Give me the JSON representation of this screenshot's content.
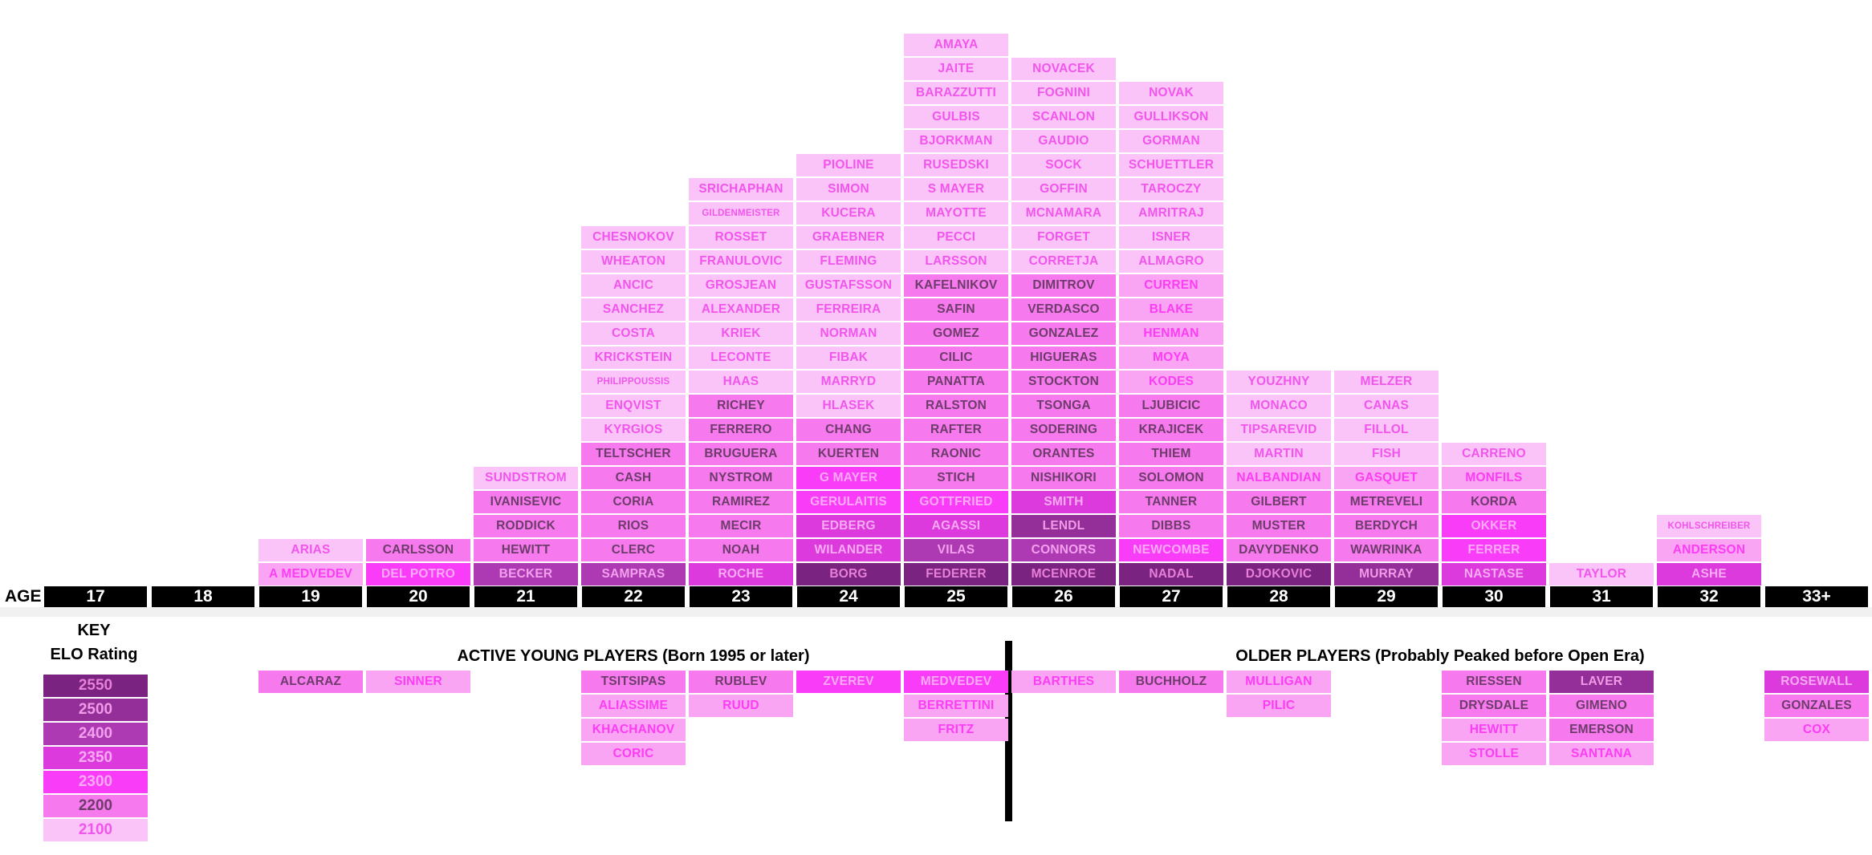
{
  "palette": {
    "2100": {
      "bg": "#FBC4F8",
      "fg": "#F156EC"
    },
    "2150": {
      "bg": "#F9A5F3",
      "fg": "#FB3DF3"
    },
    "2200": {
      "bg": "#F679EE",
      "fg": "#6E3C6B"
    },
    "2300": {
      "bg": "#F83CF8",
      "fg": "#FCA9F8"
    },
    "2350": {
      "bg": "#DD3ADD",
      "fg": "#F8AAF4"
    },
    "2400": {
      "bg": "#AD39B3",
      "fg": "#F3A0EE"
    },
    "2500": {
      "bg": "#942E98",
      "fg": "#F09AE8"
    },
    "2550": {
      "bg": "#7A2380",
      "fg": "#E87FD8"
    }
  },
  "key": {
    "title": "KEY",
    "subtitle": "ELO Rating",
    "levels": [
      "2550",
      "2500",
      "2400",
      "2350",
      "2300",
      "2200",
      "2100"
    ]
  },
  "age_axis": {
    "label": "AGE",
    "ages": [
      "17",
      "18",
      "19",
      "20",
      "21",
      "22",
      "23",
      "24",
      "25",
      "26",
      "27",
      "28",
      "29",
      "30",
      "31",
      "32",
      "33+"
    ]
  },
  "chart_data": {
    "type": "bar",
    "subtype": "stacked-player-histogram",
    "xlabel": "AGE",
    "categories": [
      "17",
      "18",
      "19",
      "20",
      "21",
      "22",
      "23",
      "24",
      "25",
      "26",
      "27",
      "28",
      "29",
      "30",
      "31",
      "32",
      "33+"
    ],
    "counts_per_age": [
      0,
      0,
      2,
      2,
      5,
      15,
      17,
      18,
      23,
      22,
      21,
      9,
      9,
      6,
      1,
      3,
      0
    ],
    "elo_levels": [
      2550,
      2500,
      2400,
      2350,
      2300,
      2200,
      2100
    ],
    "columns": {
      "17": [],
      "18": [],
      "19": [
        [
          "ARIAS",
          "2100"
        ],
        [
          "A MEDVEDEV",
          "2150"
        ]
      ],
      "20": [
        [
          "CARLSSON",
          "2200"
        ],
        [
          "DEL POTRO",
          "2300"
        ]
      ],
      "21": [
        [
          "SUNDSTROM",
          "2100"
        ],
        [
          "IVANISEVIC",
          "2200"
        ],
        [
          "RODDICK",
          "2200"
        ],
        [
          "HEWITT",
          "2200"
        ],
        [
          "BECKER",
          "2400"
        ]
      ],
      "22": [
        [
          "CHESNOKOV",
          "2100"
        ],
        [
          "WHEATON",
          "2100"
        ],
        [
          "ANCIC",
          "2100"
        ],
        [
          "SANCHEZ",
          "2100"
        ],
        [
          "COSTA",
          "2100"
        ],
        [
          "KRICKSTEIN",
          "2100"
        ],
        [
          "PHILIPPOUSSIS",
          "2100"
        ],
        [
          "ENQVIST",
          "2100"
        ],
        [
          "KYRGIOS",
          "2100"
        ],
        [
          "TELTSCHER",
          "2200"
        ],
        [
          "CASH",
          "2200"
        ],
        [
          "CORIA",
          "2200"
        ],
        [
          "RIOS",
          "2200"
        ],
        [
          "CLERC",
          "2200"
        ],
        [
          "SAMPRAS",
          "2400"
        ]
      ],
      "23": [
        [
          "SRICHAPHAN",
          "2100"
        ],
        [
          "GILDENMEISTER",
          "2100"
        ],
        [
          "ROSSET",
          "2100"
        ],
        [
          "FRANULOVIC",
          "2100"
        ],
        [
          "GROSJEAN",
          "2100"
        ],
        [
          "ALEXANDER",
          "2100"
        ],
        [
          "KRIEK",
          "2100"
        ],
        [
          "LECONTE",
          "2100"
        ],
        [
          "HAAS",
          "2100"
        ],
        [
          "RICHEY",
          "2200"
        ],
        [
          "FERRERO",
          "2200"
        ],
        [
          "BRUGUERA",
          "2200"
        ],
        [
          "NYSTROM",
          "2200"
        ],
        [
          "RAMIREZ",
          "2200"
        ],
        [
          "MECIR",
          "2200"
        ],
        [
          "NOAH",
          "2200"
        ],
        [
          "ROCHE",
          "2350"
        ]
      ],
      "24": [
        [
          "PIOLINE",
          "2100"
        ],
        [
          "SIMON",
          "2100"
        ],
        [
          "KUCERA",
          "2100"
        ],
        [
          "GRAEBNER",
          "2100"
        ],
        [
          "FLEMING",
          "2100"
        ],
        [
          "GUSTAFSSON",
          "2100"
        ],
        [
          "FERREIRA",
          "2100"
        ],
        [
          "NORMAN",
          "2100"
        ],
        [
          "FIBAK",
          "2100"
        ],
        [
          "MARRYD",
          "2100"
        ],
        [
          "HLASEK",
          "2100"
        ],
        [
          "CHANG",
          "2200"
        ],
        [
          "KUERTEN",
          "2200"
        ],
        [
          "G MAYER",
          "2300"
        ],
        [
          "GERULAITIS",
          "2300"
        ],
        [
          "EDBERG",
          "2350"
        ],
        [
          "WILANDER",
          "2350"
        ],
        [
          "BORG",
          "2550"
        ]
      ],
      "25": [
        [
          "AMAYA",
          "2100"
        ],
        [
          "JAITE",
          "2100"
        ],
        [
          "BARAZZUTTI",
          "2100"
        ],
        [
          "GULBIS",
          "2100"
        ],
        [
          "BJORKMAN",
          "2100"
        ],
        [
          "RUSEDSKI",
          "2100"
        ],
        [
          "S MAYER",
          "2100"
        ],
        [
          "MAYOTTE",
          "2100"
        ],
        [
          "PECCI",
          "2100"
        ],
        [
          "LARSSON",
          "2100"
        ],
        [
          "KAFELNIKOV",
          "2200"
        ],
        [
          "SAFIN",
          "2200"
        ],
        [
          "GOMEZ",
          "2200"
        ],
        [
          "CILIC",
          "2200"
        ],
        [
          "PANATTA",
          "2200"
        ],
        [
          "RALSTON",
          "2200"
        ],
        [
          "RAFTER",
          "2200"
        ],
        [
          "RAONIC",
          "2200"
        ],
        [
          "STICH",
          "2200"
        ],
        [
          "GOTTFRIED",
          "2300"
        ],
        [
          "AGASSI",
          "2350"
        ],
        [
          "VILAS",
          "2400"
        ],
        [
          "FEDERER",
          "2550"
        ]
      ],
      "26": [
        [
          "NOVACEK",
          "2100"
        ],
        [
          "FOGNINI",
          "2100"
        ],
        [
          "SCANLON",
          "2100"
        ],
        [
          "GAUDIO",
          "2100"
        ],
        [
          "SOCK",
          "2100"
        ],
        [
          "GOFFIN",
          "2100"
        ],
        [
          "MCNAMARA",
          "2100"
        ],
        [
          "FORGET",
          "2100"
        ],
        [
          "CORRETJA",
          "2100"
        ],
        [
          "DIMITROV",
          "2200"
        ],
        [
          "VERDASCO",
          "2200"
        ],
        [
          "GONZALEZ",
          "2200"
        ],
        [
          "HIGUERAS",
          "2200"
        ],
        [
          "STOCKTON",
          "2200"
        ],
        [
          "TSONGA",
          "2200"
        ],
        [
          "SODERING",
          "2200"
        ],
        [
          "ORANTES",
          "2200"
        ],
        [
          "NISHIKORI",
          "2200"
        ],
        [
          "SMITH",
          "2350"
        ],
        [
          "LENDL",
          "2500"
        ],
        [
          "CONNORS",
          "2400"
        ],
        [
          "MCENROE",
          "2550"
        ]
      ],
      "27": [
        [
          "NOVAK",
          "2100"
        ],
        [
          "GULLIKSON",
          "2100"
        ],
        [
          "GORMAN",
          "2100"
        ],
        [
          "SCHUETTLER",
          "2100"
        ],
        [
          "TAROCZY",
          "2100"
        ],
        [
          "AMRITRAJ",
          "2100"
        ],
        [
          "ISNER",
          "2100"
        ],
        [
          "ALMAGRO",
          "2100"
        ],
        [
          "CURREN",
          "2150"
        ],
        [
          "BLAKE",
          "2150"
        ],
        [
          "HENMAN",
          "2150"
        ],
        [
          "MOYA",
          "2150"
        ],
        [
          "KODES",
          "2150"
        ],
        [
          "LJUBICIC",
          "2200"
        ],
        [
          "KRAJICEK",
          "2200"
        ],
        [
          "THIEM",
          "2200"
        ],
        [
          "SOLOMON",
          "2200"
        ],
        [
          "TANNER",
          "2200"
        ],
        [
          "DIBBS",
          "2200"
        ],
        [
          "NEWCOMBE",
          "2300"
        ],
        [
          "NADAL",
          "2550"
        ]
      ],
      "28": [
        [
          "YOUZHNY",
          "2100"
        ],
        [
          "MONACO",
          "2100"
        ],
        [
          "TIPSAREVID",
          "2100"
        ],
        [
          "MARTIN",
          "2100"
        ],
        [
          "NALBANDIAN",
          "2150"
        ],
        [
          "GILBERT",
          "2200"
        ],
        [
          "MUSTER",
          "2200"
        ],
        [
          "DAVYDENKO",
          "2200"
        ],
        [
          "DJOKOVIC",
          "2550"
        ]
      ],
      "29": [
        [
          "MELZER",
          "2100"
        ],
        [
          "CANAS",
          "2100"
        ],
        [
          "FILLOL",
          "2100"
        ],
        [
          "FISH",
          "2100"
        ],
        [
          "GASQUET",
          "2150"
        ],
        [
          "METREVELI",
          "2200"
        ],
        [
          "BERDYCH",
          "2200"
        ],
        [
          "WAWRINKA",
          "2200"
        ],
        [
          "MURRAY",
          "2500"
        ]
      ],
      "30": [
        [
          "CARRENO",
          "2100"
        ],
        [
          "MONFILS",
          "2150"
        ],
        [
          "KORDA",
          "2200"
        ],
        [
          "OKKER",
          "2300"
        ],
        [
          "FERRER",
          "2300"
        ],
        [
          "NASTASE",
          "2350"
        ]
      ],
      "31": [
        [
          "TAYLOR",
          "2100"
        ]
      ],
      "32": [
        [
          "KOHLSCHREIBER",
          "2100"
        ],
        [
          "ANDERSON",
          "2150"
        ],
        [
          "ASHE",
          "2350"
        ]
      ],
      "33+": []
    },
    "sections": {
      "young": {
        "header": "ACTIVE YOUNG PLAYERS (Born 1995 or later)",
        "columns": {
          "19": [
            [
              "ALCARAZ",
              "2200"
            ]
          ],
          "20": [
            [
              "SINNER",
              "2150"
            ]
          ],
          "22": [
            [
              "TSITSIPAS",
              "2200"
            ],
            [
              "ALIASSIME",
              "2150"
            ],
            [
              "KHACHANOV",
              "2150"
            ],
            [
              "CORIC",
              "2150"
            ]
          ],
          "23": [
            [
              "RUBLEV",
              "2200"
            ],
            [
              "RUUD",
              "2150"
            ]
          ],
          "24": [
            [
              "ZVEREV",
              "2300"
            ]
          ],
          "25": [
            [
              "MEDVEDEV",
              "2300"
            ],
            [
              "BERRETTINI",
              "2150"
            ],
            [
              "FRITZ",
              "2150"
            ]
          ]
        }
      },
      "older": {
        "header": "OLDER PLAYERS (Probably Peaked before Open Era)",
        "columns": {
          "26": [
            [
              "BARTHES",
              "2150"
            ]
          ],
          "27": [
            [
              "BUCHHOLZ",
              "2200"
            ]
          ],
          "28": [
            [
              "MULLIGAN",
              "2150"
            ],
            [
              "PILIC",
              "2150"
            ]
          ],
          "30": [
            [
              "RIESSEN",
              "2200"
            ],
            [
              "DRYSDALE",
              "2200"
            ],
            [
              "HEWITT",
              "2150"
            ],
            [
              "STOLLE",
              "2150"
            ]
          ],
          "31": [
            [
              "LAVER",
              "2500"
            ],
            [
              "GIMENO",
              "2200"
            ],
            [
              "EMERSON",
              "2200"
            ],
            [
              "SANTANA",
              "2150"
            ]
          ],
          "33+": [
            [
              "ROSEWALL",
              "2350"
            ],
            [
              "GONZALES",
              "2200"
            ],
            [
              "COX",
              "2150"
            ]
          ]
        }
      }
    }
  }
}
